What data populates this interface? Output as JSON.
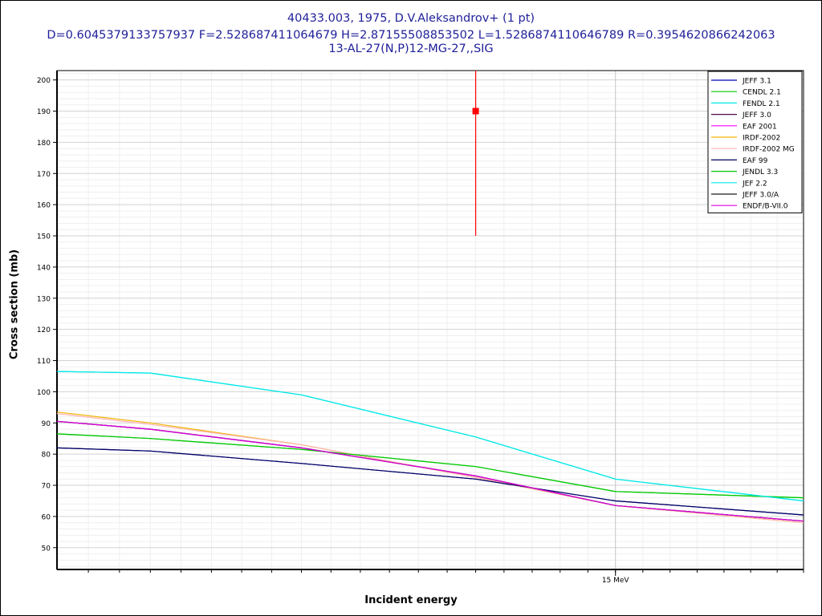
{
  "chart_data": {
    "type": "line",
    "title_lines": [
      "40433.003, 1975, D.V.Aleksandrov+ (1 pt)",
      "D=0.6045379133757937 F=2.528687411064679 H=2.87155508853502 L=1.5286874110646789 R=0.3954620866242063",
      "13-AL-27(N,P)12-MG-27,,SIG"
    ],
    "xlabel": "Incident energy",
    "ylabel": "Cross section (mb)",
    "x_unit": "MeV",
    "x_log": true,
    "xlim": [
      13.1,
      15.7
    ],
    "ylim": [
      43,
      203
    ],
    "y_ticks": [
      50,
      60,
      70,
      80,
      90,
      100,
      110,
      120,
      130,
      140,
      150,
      160,
      170,
      180,
      190,
      200
    ],
    "x_tick_labels": [
      {
        "x": 15.0,
        "label": "15 MeV"
      }
    ],
    "grid": true,
    "legend_position": "top-right",
    "series": [
      {
        "name": "JEFF 3.1",
        "color": "#0000b4",
        "x": [
          13.1,
          13.4,
          13.9,
          14.5,
          15.0,
          15.7
        ],
        "y": [
          82,
          81,
          77,
          72,
          65,
          60.5
        ]
      },
      {
        "name": "CENDL 2.1",
        "color": "#00c800",
        "x": [
          13.1,
          13.4,
          13.9,
          14.5,
          15.0,
          15.7
        ],
        "y": [
          86.5,
          85,
          81.5,
          76,
          68,
          66
        ]
      },
      {
        "name": "FENDL 2.1",
        "color": "#00e8e8",
        "x": [
          13.1,
          13.4,
          13.9,
          14.5,
          15.0,
          15.7
        ],
        "y": [
          106.5,
          106,
          99,
          85.5,
          72,
          65
        ]
      },
      {
        "name": "JEFF 3.0",
        "color": "#4b0a4b",
        "x": [
          13.1,
          13.4,
          13.9,
          14.5,
          15.0,
          15.7
        ],
        "y": [
          90.5,
          88,
          82,
          73,
          63.5,
          58.5
        ]
      },
      {
        "name": "EAF 2001",
        "color": "#ff00ff",
        "x": [
          13.1,
          13.4,
          13.9,
          14.5,
          15.0,
          15.7
        ],
        "y": [
          90.5,
          88,
          82,
          73,
          63.5,
          58.5
        ]
      },
      {
        "name": "IRDF-2002",
        "color": "#f0b400",
        "x": [
          13.1,
          13.4,
          13.9,
          14.5,
          15.0,
          15.7
        ],
        "y": [
          93.5,
          90,
          83,
          72.5,
          63.5,
          58
        ]
      },
      {
        "name": "IRDF-2002 MG",
        "color": "#ffb4b4",
        "x": [
          13.1,
          13.4,
          13.9,
          14.5,
          15.0,
          15.7
        ],
        "y": [
          93,
          89.5,
          83,
          72.5,
          63.5,
          58
        ]
      },
      {
        "name": "EAF 99",
        "color": "#000060",
        "x": [
          13.1,
          13.4,
          13.9,
          14.5,
          15.0,
          15.7
        ],
        "y": [
          82,
          81,
          77,
          72,
          65,
          60.5
        ]
      },
      {
        "name": "JENDL 3.3",
        "color": "#00c800",
        "x": [
          13.1,
          13.4,
          13.9,
          14.5,
          15.0,
          15.7
        ],
        "y": [
          86.5,
          85,
          81.5,
          76,
          68,
          66
        ]
      },
      {
        "name": "JEF 2.2",
        "color": "#00e8e8",
        "x": [
          13.1,
          13.4,
          13.9,
          14.5,
          15.0,
          15.7
        ],
        "y": [
          106.5,
          106,
          99,
          85.5,
          72,
          65
        ]
      },
      {
        "name": "JEFF 3.0/A",
        "color": "#1a1a1a",
        "x": [
          13.1,
          13.4,
          13.9,
          14.5,
          15.0,
          15.7
        ],
        "y": [
          90.5,
          88,
          82,
          73,
          63.5,
          58.5
        ]
      },
      {
        "name": "ENDF/B-VII.0",
        "color": "#e000e0",
        "x": [
          13.1,
          13.4,
          13.9,
          14.5,
          15.0,
          15.7
        ],
        "y": [
          90.5,
          88,
          82,
          73,
          63.5,
          58.5
        ]
      }
    ],
    "experimental_points": [
      {
        "x": 14.5,
        "y": 190,
        "y_err_low": 150,
        "y_err_high": 203,
        "color": "#ff0000"
      }
    ]
  }
}
